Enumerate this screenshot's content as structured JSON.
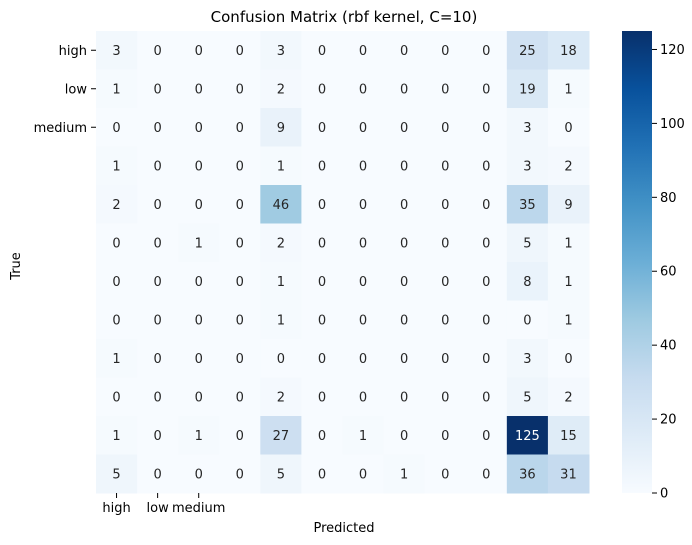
{
  "chart_data": {
    "type": "heatmap",
    "title": "Confusion Matrix (rbf kernel, C=10)",
    "xlabel": "Predicted",
    "ylabel": "True",
    "x_tick_labels": [
      "high",
      "low",
      "medium",
      "",
      "",
      "",
      "",
      "",
      "",
      "",
      "",
      ""
    ],
    "y_tick_labels": [
      "high",
      "low",
      "medium",
      "",
      "",
      "",
      "",
      "",
      "",
      "",
      "",
      ""
    ],
    "matrix": [
      [
        3,
        0,
        0,
        0,
        3,
        0,
        0,
        0,
        0,
        0,
        25,
        18
      ],
      [
        1,
        0,
        0,
        0,
        2,
        0,
        0,
        0,
        0,
        0,
        19,
        1
      ],
      [
        0,
        0,
        0,
        0,
        9,
        0,
        0,
        0,
        0,
        0,
        3,
        0
      ],
      [
        1,
        0,
        0,
        0,
        1,
        0,
        0,
        0,
        0,
        0,
        3,
        2
      ],
      [
        2,
        0,
        0,
        0,
        46,
        0,
        0,
        0,
        0,
        0,
        35,
        9
      ],
      [
        0,
        0,
        1,
        0,
        2,
        0,
        0,
        0,
        0,
        0,
        5,
        1
      ],
      [
        0,
        0,
        0,
        0,
        1,
        0,
        0,
        0,
        0,
        0,
        8,
        1
      ],
      [
        0,
        0,
        0,
        0,
        1,
        0,
        0,
        0,
        0,
        0,
        0,
        1
      ],
      [
        1,
        0,
        0,
        0,
        0,
        0,
        0,
        0,
        0,
        0,
        3,
        0
      ],
      [
        0,
        0,
        0,
        0,
        2,
        0,
        0,
        0,
        0,
        0,
        5,
        2
      ],
      [
        1,
        0,
        1,
        0,
        27,
        0,
        1,
        0,
        0,
        0,
        125,
        15
      ],
      [
        5,
        0,
        0,
        0,
        5,
        0,
        0,
        1,
        0,
        0,
        36,
        31
      ]
    ],
    "colormap": "Blues",
    "vmin": 0,
    "vmax": 125,
    "colorbar_ticks": [
      0,
      20,
      40,
      60,
      80,
      100,
      120
    ],
    "annotations": true
  }
}
